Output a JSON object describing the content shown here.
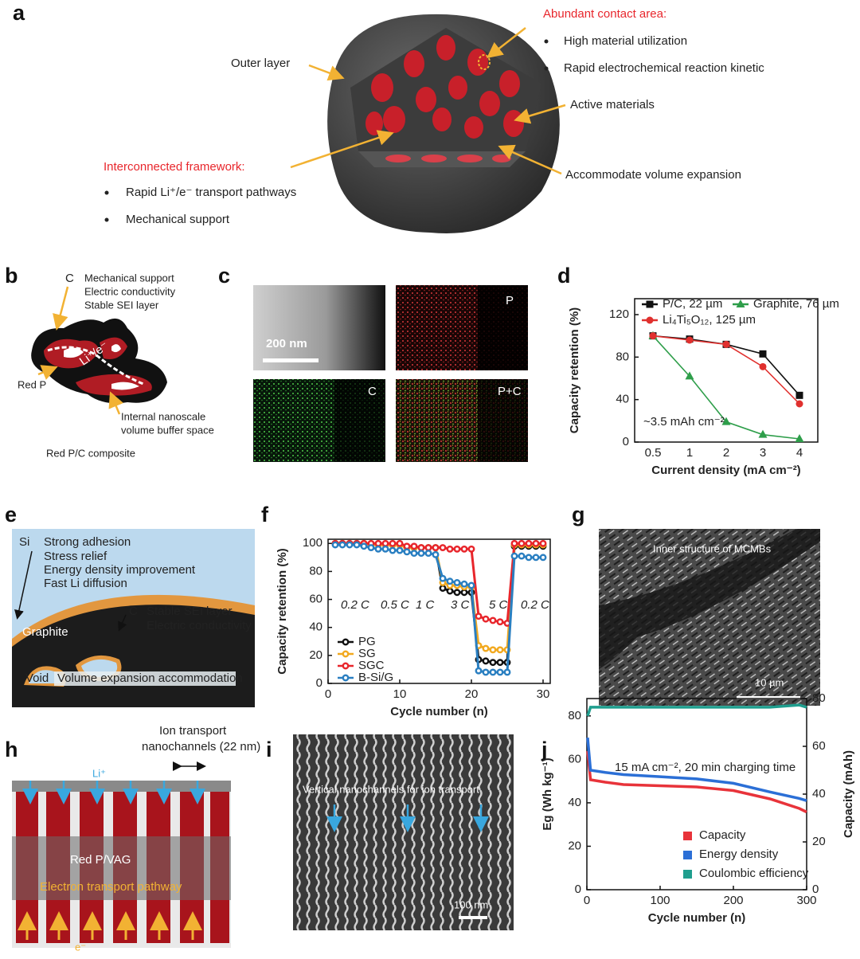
{
  "panels": {
    "a": {
      "label": "a",
      "outer_layer": "Outer layer",
      "contact_title": "Abundant contact area:",
      "contact_items": [
        "High material utilization",
        "Rapid electrochemical reaction kinetic"
      ],
      "active": "Active materials",
      "volume": "Accommodate volume expansion",
      "framework_title": "Interconnected framework:",
      "framework_items": [
        "Rapid Li⁺/e⁻ transport pathways",
        "Mechanical support"
      ]
    },
    "b": {
      "label": "b",
      "c": "C",
      "properties": [
        "Mechanical support",
        "Electric conductivity",
        "Stable SEI layer"
      ],
      "transport": "Li⁺/e⁻",
      "red_p": "Red P",
      "buffer": [
        "Internal nanoscale",
        "volume buffer space"
      ],
      "caption": "Red P/C composite"
    },
    "c": {
      "label": "c",
      "scale": "200 nm",
      "maps": [
        "P",
        "C",
        "P+C"
      ]
    },
    "e": {
      "label": "e",
      "si": "Si",
      "si_props": [
        "Strong adhesion",
        "Stress relief",
        "Energy density improvement",
        "Fast Li diffusion"
      ],
      "c": "C",
      "c_props": [
        "Stable SEI layer",
        "Electric conductivity"
      ],
      "graphite": "Graphite",
      "void": "Void",
      "void_note": "Volume expansion accommodation"
    },
    "g": {
      "label": "g",
      "caption": "Inner structure of MCMBs",
      "scale": "10 µm"
    },
    "h": {
      "label": "h",
      "channel": [
        "Ion transport",
        "nanochannels (22 nm)"
      ],
      "li": "Li⁺",
      "material": "Red P/VAG",
      "pathway": "Electron transport pathway",
      "electron": "e⁻"
    },
    "i": {
      "label": "i",
      "caption": "Vertical nanochannels for ion transport",
      "scale": "100 nm"
    }
  },
  "chart_data": [
    {
      "type": "line",
      "panel_label": "d",
      "xlabel": "Current density (mA cm⁻²)",
      "ylabel": "Capacity retention (%)",
      "categories": [
        "0.5",
        "1",
        "2",
        "3",
        "4"
      ],
      "ylim": [
        0,
        135
      ],
      "yticks": [
        0,
        40,
        80,
        120
      ],
      "annotations": [
        "~3.5 mAh cm⁻²"
      ],
      "series": [
        {
          "name": "P/C, 22 µm",
          "color": "#111111",
          "marker": "square",
          "values": [
            100,
            97,
            92,
            83,
            44
          ]
        },
        {
          "name": "Graphite, 76 µm",
          "color": "#2e9e4a",
          "marker": "triangle",
          "values": [
            100,
            62,
            19,
            7,
            3
          ]
        },
        {
          "name": "Li₄Ti₅O₁₂, 125 µm",
          "color": "#e0302e",
          "marker": "circle",
          "values": [
            100,
            96,
            92,
            71,
            36
          ]
        }
      ]
    },
    {
      "type": "line",
      "panel_label": "f",
      "xlabel": "Cycle number (n)",
      "ylabel": "Capacity retention (%)",
      "x": [
        1,
        2,
        3,
        4,
        5,
        6,
        7,
        8,
        9,
        10,
        11,
        12,
        13,
        14,
        15,
        16,
        17,
        18,
        19,
        20,
        21,
        22,
        23,
        24,
        25,
        26,
        27,
        28,
        29,
        30
      ],
      "xlim": [
        0,
        31
      ],
      "xticks": [
        0,
        10,
        20,
        30
      ],
      "ylim": [
        0,
        103
      ],
      "yticks": [
        0,
        20,
        40,
        60,
        80,
        100
      ],
      "annotations": [
        "0.2 C",
        "0.5 C",
        "1 C",
        "3 C",
        "5 C",
        "0.2 C"
      ],
      "series": [
        {
          "name": "PG",
          "color": "#111111",
          "marker": "ring",
          "values": [
            100,
            100,
            100,
            100,
            100,
            99,
            99,
            99,
            99,
            99,
            97,
            97,
            97,
            97,
            97,
            68,
            66,
            65,
            65,
            65,
            17,
            16,
            15,
            15,
            15,
            98,
            98,
            98,
            98,
            98
          ]
        },
        {
          "name": "SG",
          "color": "#f2a91f",
          "marker": "ring",
          "values": [
            100,
            100,
            100,
            100,
            100,
            99,
            99,
            99,
            99,
            99,
            97,
            97,
            97,
            97,
            97,
            72,
            70,
            70,
            69,
            69,
            27,
            25,
            24,
            24,
            24,
            99,
            99,
            99,
            99,
            99
          ]
        },
        {
          "name": "SGC",
          "color": "#e8262c",
          "marker": "ring",
          "values": [
            100,
            100,
            100,
            100,
            100,
            100,
            100,
            100,
            100,
            100,
            98,
            98,
            97,
            97,
            97,
            97,
            96,
            96,
            96,
            96,
            48,
            46,
            45,
            44,
            43,
            100,
            100,
            100,
            100,
            100
          ]
        },
        {
          "name": "B-Si/G",
          "color": "#2a7fc1",
          "marker": "ring",
          "values": [
            99,
            99,
            99,
            99,
            98,
            97,
            96,
            96,
            95,
            95,
            94,
            93,
            93,
            93,
            92,
            75,
            73,
            72,
            71,
            70,
            9,
            8,
            8,
            8,
            8,
            91,
            91,
            90,
            90,
            90
          ]
        }
      ]
    },
    {
      "type": "line",
      "panel_label": "j",
      "xlabel": "Cycle number (n)",
      "ylabel": "Eg (Wh kg⁻¹)",
      "y2label": "Capacity (mAh)",
      "x": [
        1,
        5,
        25,
        50,
        100,
        150,
        200,
        250,
        290,
        300
      ],
      "xlim": [
        0,
        300
      ],
      "xticks": [
        0,
        100,
        200,
        300
      ],
      "ylim": [
        0,
        88
      ],
      "yticks": [
        0,
        20,
        40,
        60,
        80
      ],
      "y2lim": [
        0,
        80
      ],
      "y2ticks": [
        0,
        20,
        40,
        60,
        80
      ],
      "annotations": [
        "15 mA cm⁻², 20 min charging time"
      ],
      "series": [
        {
          "name": "Capacity",
          "color": "#e8333a",
          "axis": "y2",
          "values": [
            58,
            46,
            45,
            44,
            43.5,
            43,
            41.5,
            38,
            34,
            32.5
          ]
        },
        {
          "name": "Energy density",
          "color": "#2b6fd6",
          "values": [
            70,
            55,
            54,
            53,
            52,
            51,
            49,
            45,
            42,
            41
          ]
        },
        {
          "name": "Coulombic efficiency",
          "color": "#1f9e8e",
          "values": [
            80,
            84,
            84,
            84,
            84,
            84,
            84,
            84,
            85,
            84
          ]
        }
      ]
    }
  ]
}
